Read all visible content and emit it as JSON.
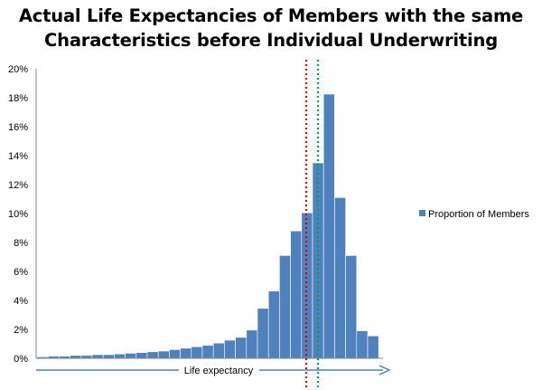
{
  "chart_data": {
    "type": "bar",
    "title_lines": [
      "Actual Life Expectancies of Members with the same",
      "Characteristics before Individual Underwriting"
    ],
    "xlabel": "Life expectancy",
    "ylabel": "",
    "ylim": [
      0,
      20
    ],
    "yticks": [
      "0%",
      "2%",
      "4%",
      "6%",
      "8%",
      "10%",
      "12%",
      "14%",
      "16%",
      "18%",
      "20%"
    ],
    "grid": false,
    "legend_position": "right",
    "series": [
      {
        "name": "Proportion of Members",
        "color": "#4f81bd",
        "values": [
          0.1,
          0.15,
          0.15,
          0.2,
          0.2,
          0.25,
          0.25,
          0.3,
          0.35,
          0.4,
          0.45,
          0.5,
          0.6,
          0.7,
          0.8,
          0.9,
          1.05,
          1.25,
          1.45,
          1.95,
          3.45,
          4.65,
          7.1,
          8.8,
          10.05,
          13.5,
          18.25,
          11.1,
          7.1,
          1.9,
          1.55
        ]
      }
    ],
    "reference_lines": [
      {
        "color": "#e00000",
        "style": "dotted"
      },
      {
        "color": "#00a050",
        "style": "dotted"
      }
    ]
  }
}
